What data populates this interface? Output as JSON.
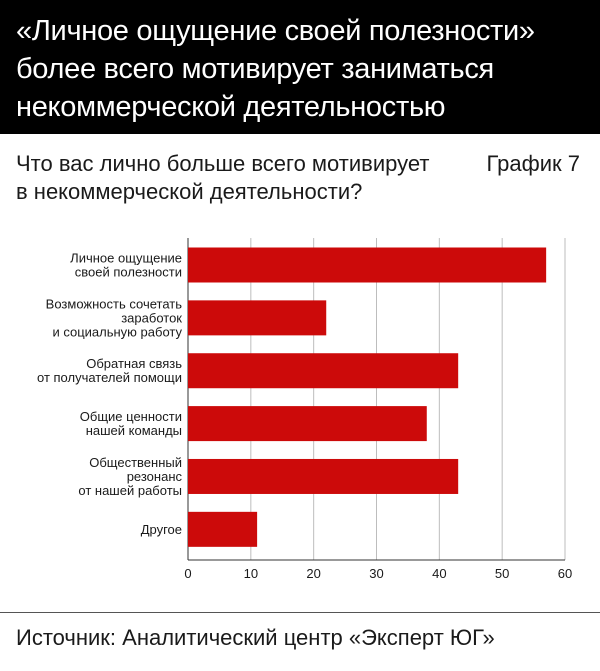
{
  "header": {
    "title_lines": [
      "«Личное ощущение своей полезности»",
      "более всего мотивирует заниматься",
      "некоммерческой деятельностью"
    ]
  },
  "question_lines": [
    "Что вас лично больше всего мотивирует",
    "в некоммерческой деятельности?"
  ],
  "graph_number": "График 7",
  "source": "Источник: Аналитический центр «Эксперт ЮГ»",
  "colors": {
    "bar": "#cc0a0a",
    "header_bg": "#000000",
    "grid": "#bdbdbd"
  },
  "chart_data": {
    "type": "bar",
    "orientation": "horizontal",
    "categories": [
      [
        "Личное ощущение",
        "своей полезности"
      ],
      [
        "Возможность сочетать",
        "заработок",
        "и социальную работу"
      ],
      [
        "Обратная связь",
        "от получателей помощи"
      ],
      [
        "Общие ценности",
        "нашей команды"
      ],
      [
        "Общественный",
        "резонанс",
        "от нашей работы"
      ],
      [
        "Другое"
      ]
    ],
    "values": [
      57,
      22,
      43,
      38,
      43,
      11
    ],
    "xlim": [
      0,
      60
    ],
    "xticks": [
      0,
      10,
      20,
      30,
      40,
      50,
      60
    ],
    "grid": true
  }
}
